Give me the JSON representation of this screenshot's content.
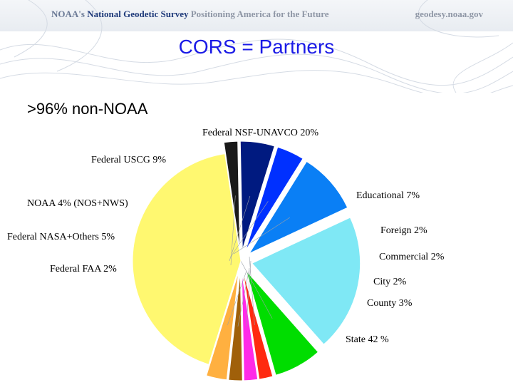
{
  "header": {
    "org": "NOAA's",
    "survey": "National Geodetic Survey",
    "tagline": "Positioning America for the Future",
    "site": "geodesy.noaa.gov"
  },
  "slide": {
    "title": "CORS = Partners",
    "subtitle": ">96% non-NOAA"
  },
  "chart_data": {
    "type": "pie",
    "title": "CORS = Partners",
    "slices": [
      {
        "label": "Federal NSF-UNAVCO 20%",
        "value": 20,
        "color": "#7fe8f5",
        "exploded": true
      },
      {
        "label": "Educational 7%",
        "value": 7,
        "color": "#00dd00",
        "exploded": true
      },
      {
        "label": "Foreign 2%",
        "value": 2,
        "color": "#ff2a10",
        "exploded": true
      },
      {
        "label": "Commercial 2%",
        "value": 2,
        "color": "#ff2ae8",
        "exploded": true
      },
      {
        "label": "City 2%",
        "value": 2,
        "color": "#a0600a",
        "exploded": true
      },
      {
        "label": "County 3%",
        "value": 3,
        "color": "#ffb040",
        "exploded": true
      },
      {
        "label": "State 42 %",
        "value": 42,
        "color": "#fff870",
        "exploded": false
      },
      {
        "label": "Federal FAA 2%",
        "value": 2,
        "color": "#1a1a1a",
        "exploded": true
      },
      {
        "label": "Federal NASA+Others 5%",
        "value": 5,
        "color": "#001a80",
        "exploded": true
      },
      {
        "label": "NOAA 4% (NOS+NWS)",
        "value": 4,
        "color": "#0030ff",
        "exploded": true
      },
      {
        "label": "Federal USCG 9%",
        "value": 9,
        "color": "#0a7ff5",
        "exploded": true
      }
    ]
  }
}
